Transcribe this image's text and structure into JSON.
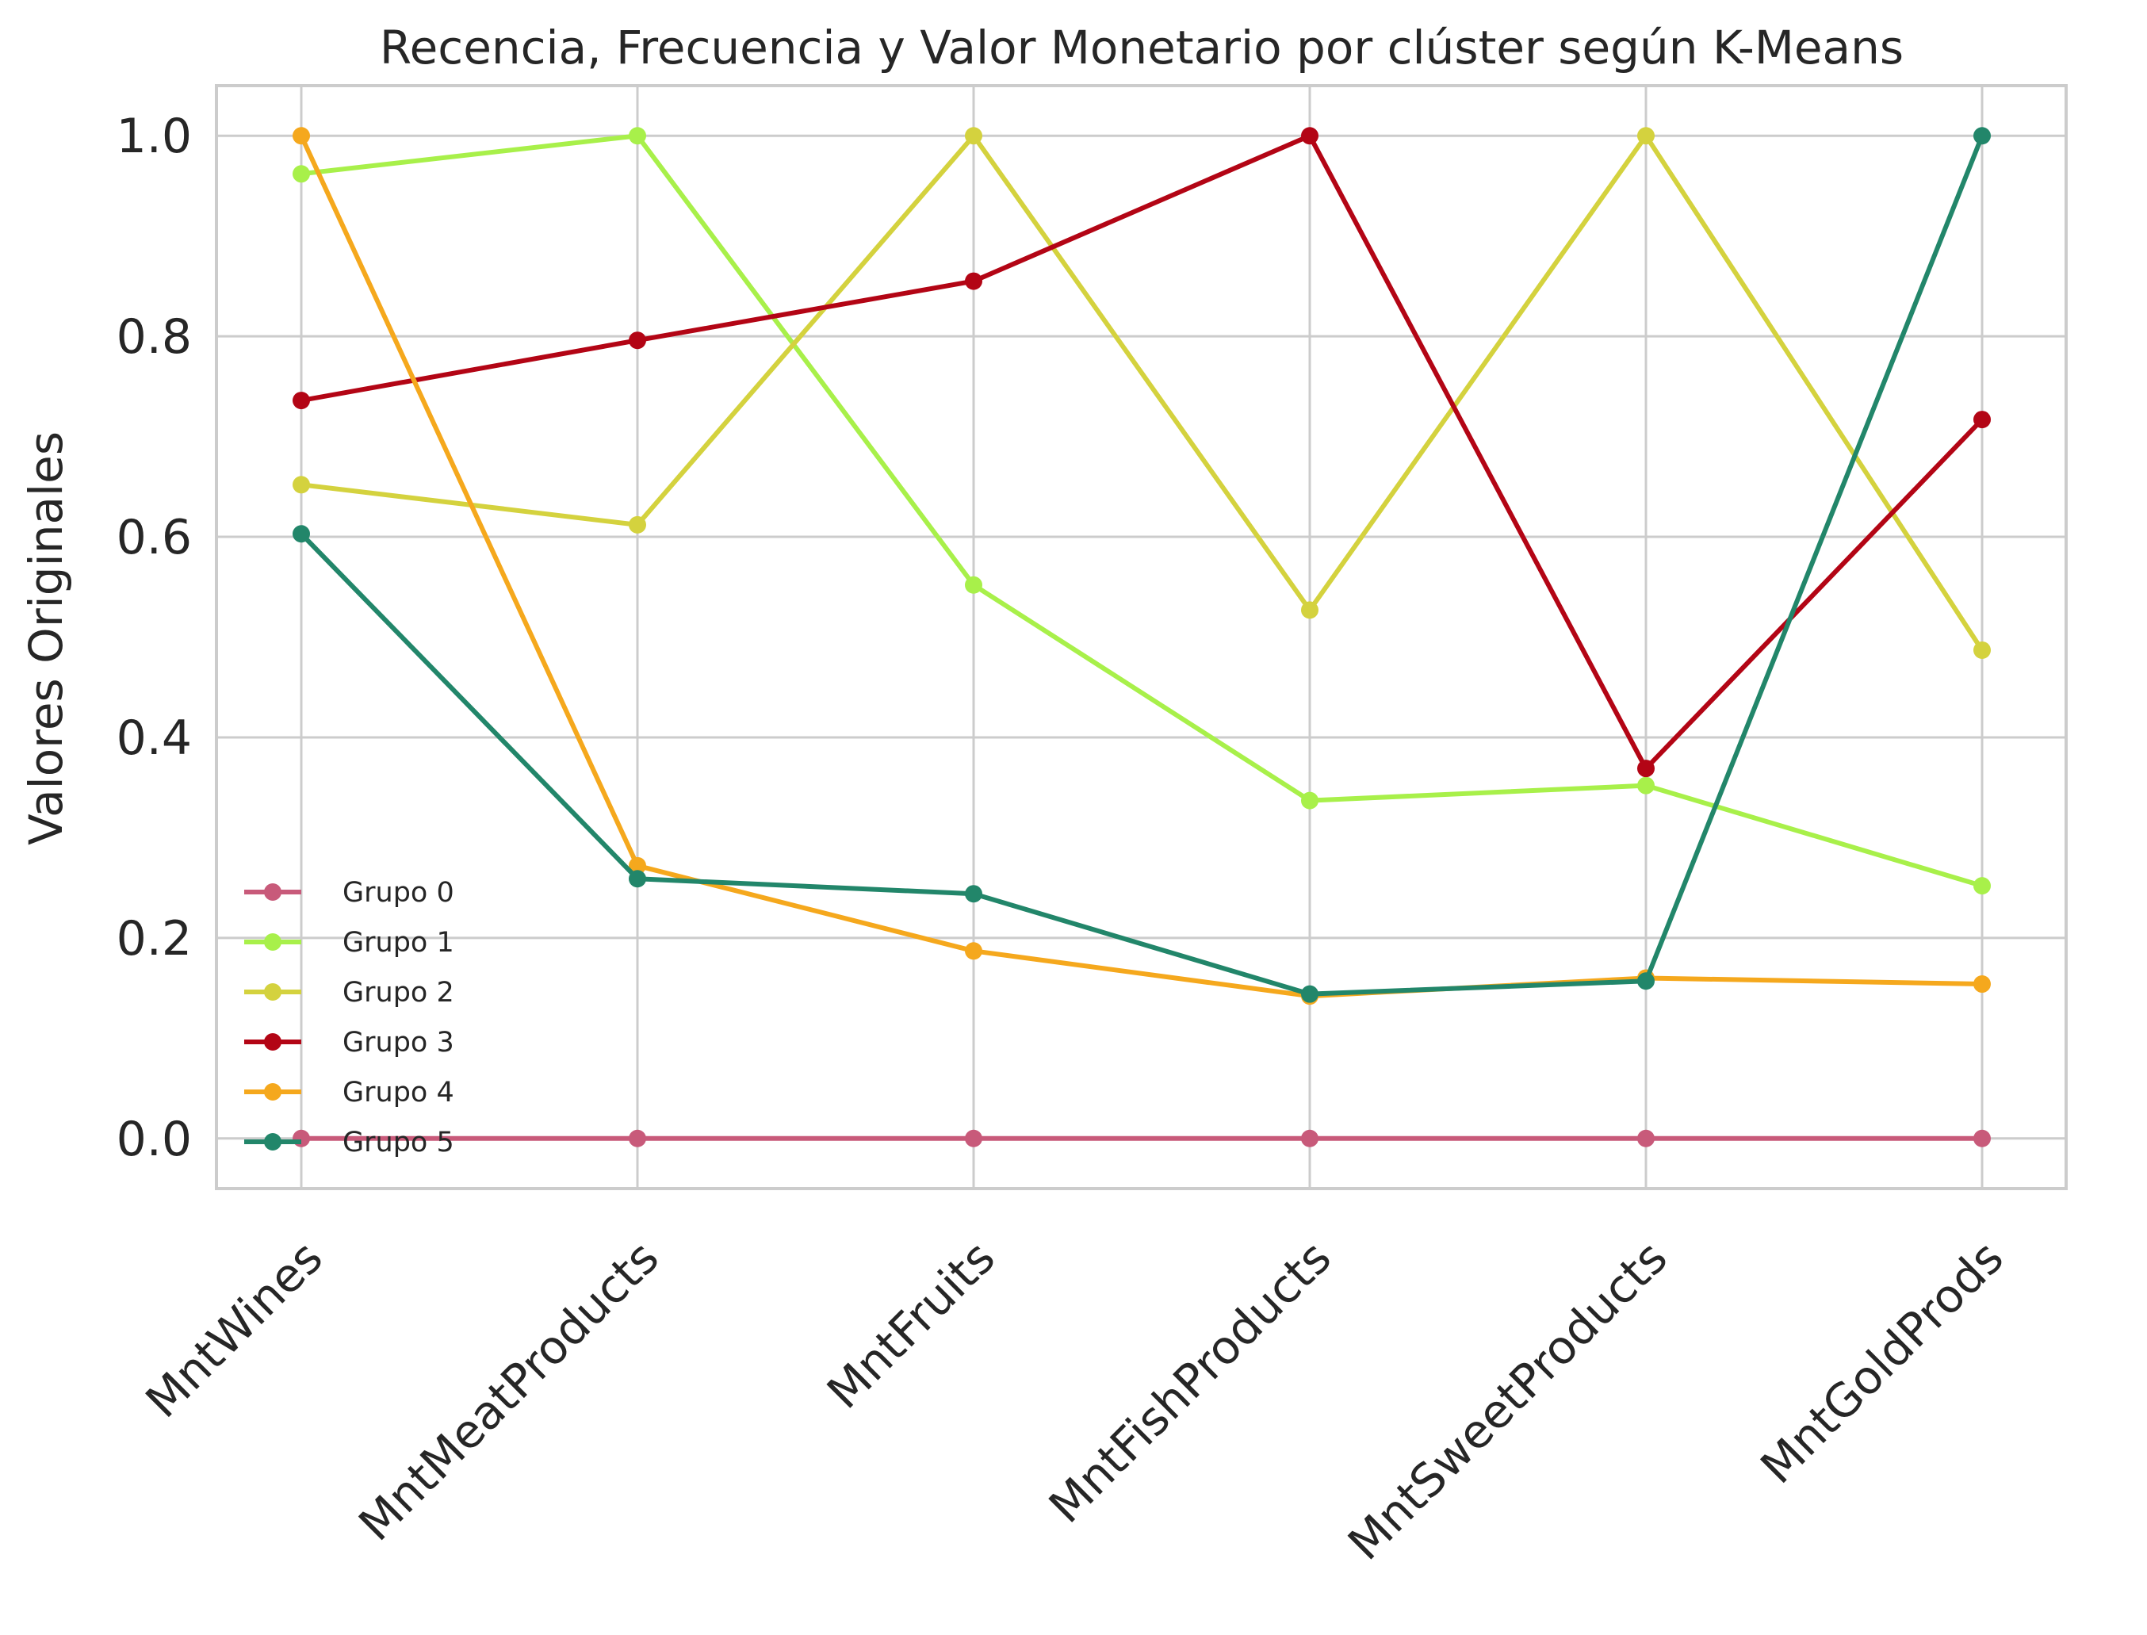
{
  "chart_data": {
    "type": "line",
    "title": "Recencia, Frecuencia y Valor Monetario por clúster según K-Means",
    "xlabel": "",
    "ylabel": "Valores Originales",
    "categories": [
      "MntWines",
      "MntMeatProducts",
      "MntFruits",
      "MntFishProducts",
      "MntSweetProducts",
      "MntGoldProds"
    ],
    "ylim": [
      -0.05,
      1.05
    ],
    "yticks": [
      "0.0",
      "0.2",
      "0.4",
      "0.6",
      "0.8",
      "1.0"
    ],
    "grid": true,
    "legend_position": "lower-left",
    "series": [
      {
        "name": "Grupo 0",
        "color": "#c85a7a",
        "values": [
          0,
          0,
          0,
          0,
          0,
          0
        ]
      },
      {
        "name": "Grupo 1",
        "color": "#a8f04a",
        "values": [
          0.962,
          1.0,
          0.552,
          0.337,
          0.352,
          0.252
        ]
      },
      {
        "name": "Grupo 2",
        "color": "#d4d23e",
        "values": [
          0.652,
          0.612,
          1.0,
          0.527,
          1.0,
          0.487
        ]
      },
      {
        "name": "Grupo 3",
        "color": "#b30515",
        "values": [
          0.736,
          0.796,
          0.855,
          1.0,
          0.369,
          0.717
        ]
      },
      {
        "name": "Grupo 4",
        "color": "#f5a81d",
        "values": [
          1.0,
          0.272,
          0.187,
          0.142,
          0.16,
          0.154
        ]
      },
      {
        "name": "Grupo 5",
        "color": "#22866a",
        "values": [
          0.603,
          0.259,
          0.244,
          0.144,
          0.157,
          1.0
        ]
      }
    ]
  }
}
